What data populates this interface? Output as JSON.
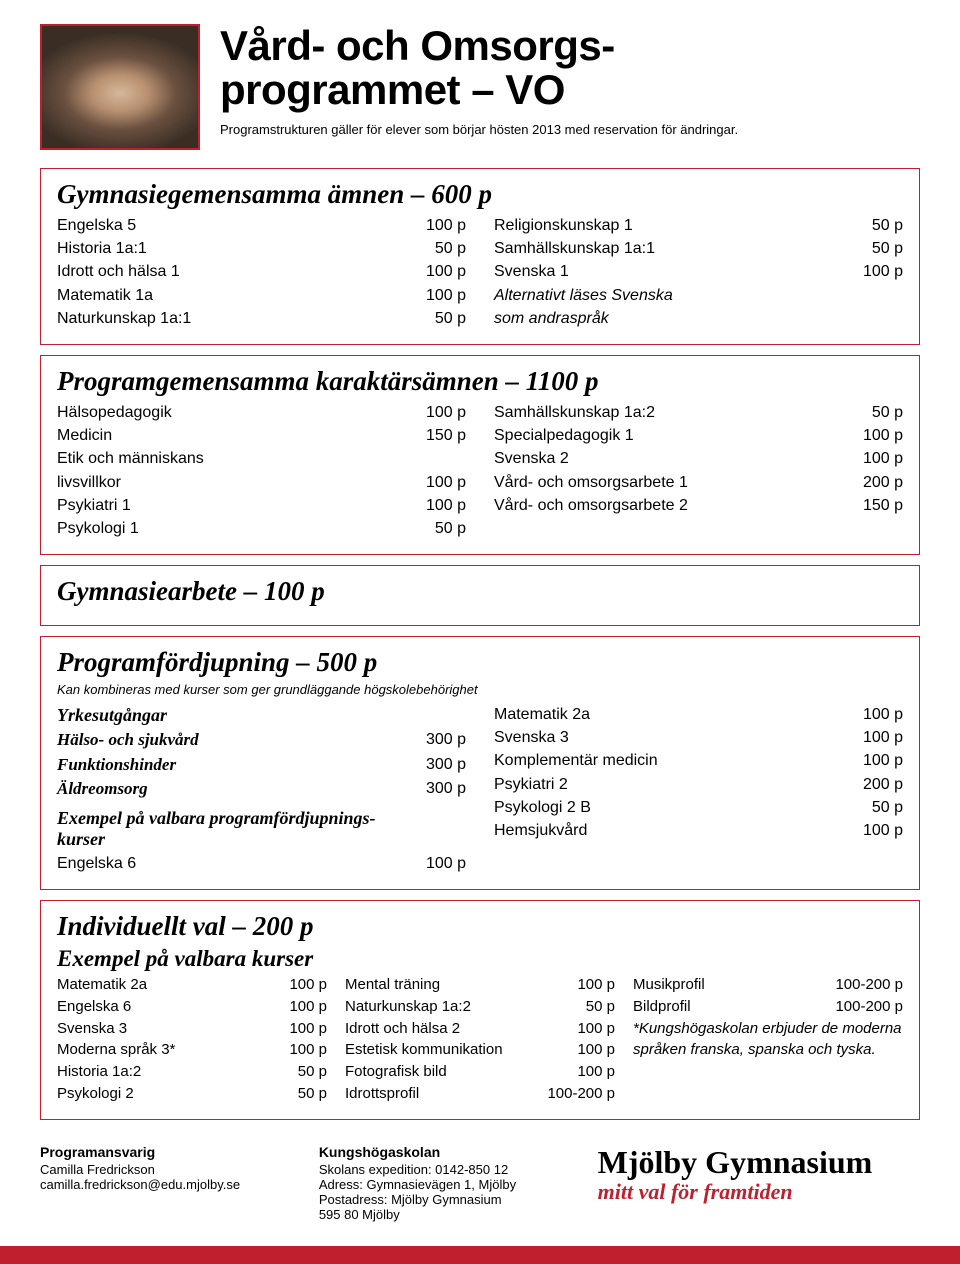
{
  "colors": {
    "accent": "#c01f2e",
    "text": "#000000",
    "bg": "#ffffff"
  },
  "header": {
    "title_line1": "Vård- och Omsorgs-",
    "title_line2": "programmet – VO",
    "subtitle": "Programstrukturen gäller för elever som börjar hösten 2013 med reservation för ändringar."
  },
  "box1": {
    "heading": "Gymnasiegemensamma ämnen – 600 p",
    "left": [
      {
        "label": "Engelska 5",
        "val": "100 p"
      },
      {
        "label": "Historia 1a:1",
        "val": "50 p"
      },
      {
        "label": "Idrott och hälsa 1",
        "val": "100 p"
      },
      {
        "label": "Matematik 1a",
        "val": "100 p"
      },
      {
        "label": "Naturkunskap 1a:1",
        "val": "50 p"
      }
    ],
    "right": [
      {
        "label": "Religionskunskap 1",
        "val": "50 p"
      },
      {
        "label": "Samhällskunskap 1a:1",
        "val": "50 p"
      },
      {
        "label": "Svenska 1",
        "val": "100 p"
      }
    ],
    "right_note1": "Alternativt läses Svenska",
    "right_note2": "som andraspråk"
  },
  "box2": {
    "heading": "Programgemensamma karaktärsämnen – 1100 p",
    "left": [
      {
        "label": "Hälsopedagogik",
        "val": "100 p"
      },
      {
        "label": "Medicin",
        "val": "150 p"
      },
      {
        "label": "Etik och människans",
        "val": ""
      },
      {
        "label": "livsvillkor",
        "val": "100 p"
      },
      {
        "label": "Psykiatri 1",
        "val": "100 p"
      },
      {
        "label": "Psykologi 1",
        "val": "50 p"
      }
    ],
    "right": [
      {
        "label": "Samhällskunskap 1a:2",
        "val": "50 p"
      },
      {
        "label": "Specialpedagogik 1",
        "val": "100 p"
      },
      {
        "label": "Svenska 2",
        "val": "100 p"
      },
      {
        "label": "Vård- och omsorgsarbete 1",
        "val": "200 p"
      },
      {
        "label": "Vård- och omsorgsarbete 2",
        "val": "150 p"
      }
    ]
  },
  "box3": {
    "heading": "Gymnasiearbete – 100 p"
  },
  "box4": {
    "heading": "Programfördjupning – 500 p",
    "note": "Kan kombineras med kurser som ger grundläggande högskolebehörighet",
    "left_sub1": "Yrkesutgångar",
    "left_tracks": [
      {
        "label": "Hälso- och sjukvård",
        "val": "300 p"
      },
      {
        "label": "Funktionshinder",
        "val": "300 p"
      },
      {
        "label": "Äldreomsorg",
        "val": "300 p"
      }
    ],
    "left_sub2a": "Exempel på valbara programfördjupnings-",
    "left_sub2b": "kurser",
    "left_courses": [
      {
        "label": "Engelska 6",
        "val": "100 p"
      }
    ],
    "right": [
      {
        "label": "Matematik 2a",
        "val": "100 p"
      },
      {
        "label": "Svenska 3",
        "val": "100 p"
      },
      {
        "label": "Komplementär medicin",
        "val": "100 p"
      },
      {
        "label": "Psykiatri 2",
        "val": "200 p"
      },
      {
        "label": "Psykologi 2 B",
        "val": "50 p"
      },
      {
        "label": "Hemsjukvård",
        "val": "100 p"
      }
    ]
  },
  "box5": {
    "heading": "Individuellt val – 200 p",
    "sub": "Exempel på valbara kurser",
    "col1": [
      {
        "label": "Matematik 2a",
        "val": "100 p"
      },
      {
        "label": "Engelska 6",
        "val": "100 p"
      },
      {
        "label": "Svenska 3",
        "val": "100 p"
      },
      {
        "label": "Moderna språk 3*",
        "val": "100 p"
      },
      {
        "label": "Historia 1a:2",
        "val": "50 p"
      },
      {
        "label": "Psykologi 2",
        "val": "50 p"
      }
    ],
    "col2": [
      {
        "label": "Mental träning",
        "val": "100 p"
      },
      {
        "label": "Naturkunskap 1a:2",
        "val": "50 p"
      },
      {
        "label": "Idrott och hälsa 2",
        "val": "100 p"
      },
      {
        "label": "Estetisk kommunikation",
        "val": "100 p"
      },
      {
        "label": "Fotografisk bild",
        "val": "100 p"
      },
      {
        "label": "Idrottsprofil",
        "val": "100-200 p"
      }
    ],
    "col3": [
      {
        "label": "Musikprofil",
        "val": "100-200 p"
      },
      {
        "label": "Bildprofil",
        "val": "100-200 p"
      }
    ],
    "col3_note": "*Kungshögaskolan erbjuder de moderna språken franska, spanska och tyska."
  },
  "footer": {
    "c1_h": "Programansvarig",
    "c1_l1": "Camilla Fredrickson",
    "c1_l2": "camilla.fredrickson@edu.mjolby.se",
    "c2_h": "Kungshögaskolan",
    "c2_l1": "Skolans expedition: 0142-850 12",
    "c2_l2": "Adress: Gymnasievägen 1, Mjölby",
    "c2_l3": "Postadress: Mjölby Gymnasium",
    "c2_l4": "595 80 Mjölby",
    "brand": "Mjölby Gymnasium",
    "tag": "mitt val för framtiden"
  }
}
